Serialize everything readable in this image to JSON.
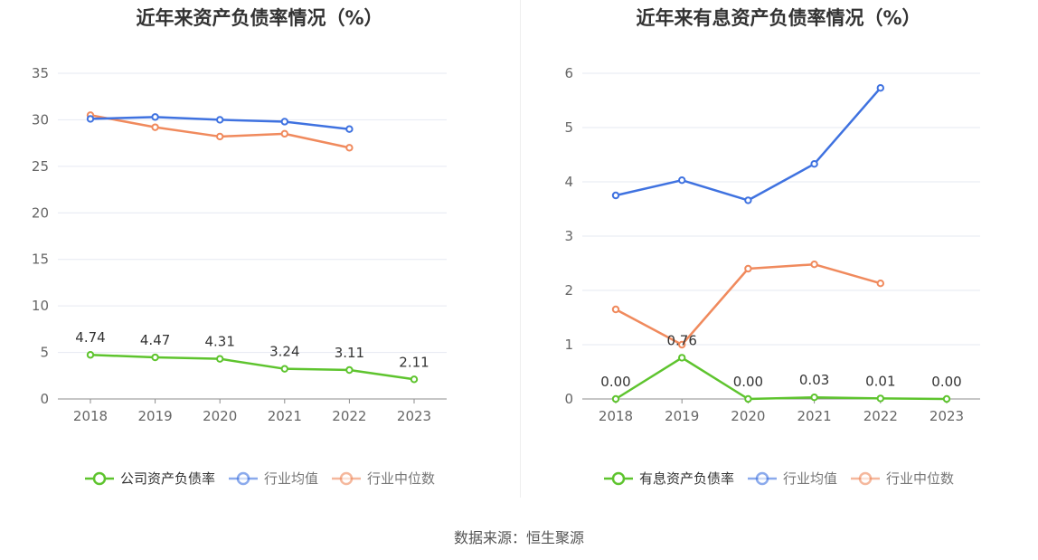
{
  "chart_data": [
    {
      "type": "line",
      "title": "近年来资产负债率情况（%）",
      "categories": [
        "2018",
        "2019",
        "2020",
        "2021",
        "2022",
        "2023"
      ],
      "ylim": [
        0,
        35
      ],
      "yticks": [
        "0",
        "5",
        "10",
        "15",
        "20",
        "25",
        "30",
        "35"
      ],
      "grid": true,
      "legend_position": "bottom",
      "series": [
        {
          "name": "公司资产负债率",
          "color": "#5ec42e",
          "values": [
            4.74,
            4.47,
            4.31,
            3.24,
            3.11,
            2.11
          ],
          "labels": [
            "4.74",
            "4.47",
            "4.31",
            "3.24",
            "3.11",
            "2.11"
          ]
        },
        {
          "name": "行业均值",
          "color": "#3f72e0",
          "values": [
            30.1,
            30.3,
            30.0,
            29.8,
            29.0,
            null
          ]
        },
        {
          "name": "行业中位数",
          "color": "#f08a5d",
          "values": [
            30.5,
            29.2,
            28.2,
            28.5,
            27.0,
            null
          ]
        }
      ]
    },
    {
      "type": "line",
      "title": "近年来有息资产负债率情况（%）",
      "categories": [
        "2018",
        "2019",
        "2020",
        "2021",
        "2022",
        "2023"
      ],
      "ylim": [
        0,
        6
      ],
      "yticks": [
        "0",
        "1",
        "2",
        "3",
        "4",
        "5",
        "6"
      ],
      "grid": true,
      "legend_position": "bottom",
      "series": [
        {
          "name": "有息资产负债率",
          "color": "#5ec42e",
          "values": [
            0.0,
            0.76,
            0.0,
            0.03,
            0.01,
            0.0
          ],
          "labels": [
            "0.00",
            "0.76",
            "0.00",
            "0.03",
            "0.01",
            "0.00"
          ]
        },
        {
          "name": "行业均值",
          "color": "#3f72e0",
          "values": [
            3.75,
            4.03,
            3.66,
            4.33,
            5.73,
            null
          ]
        },
        {
          "name": "行业中位数",
          "color": "#f08a5d",
          "values": [
            1.65,
            1.0,
            2.4,
            2.48,
            2.13,
            null
          ]
        }
      ]
    }
  ],
  "footer": {
    "source": "数据来源：恒生聚源"
  }
}
